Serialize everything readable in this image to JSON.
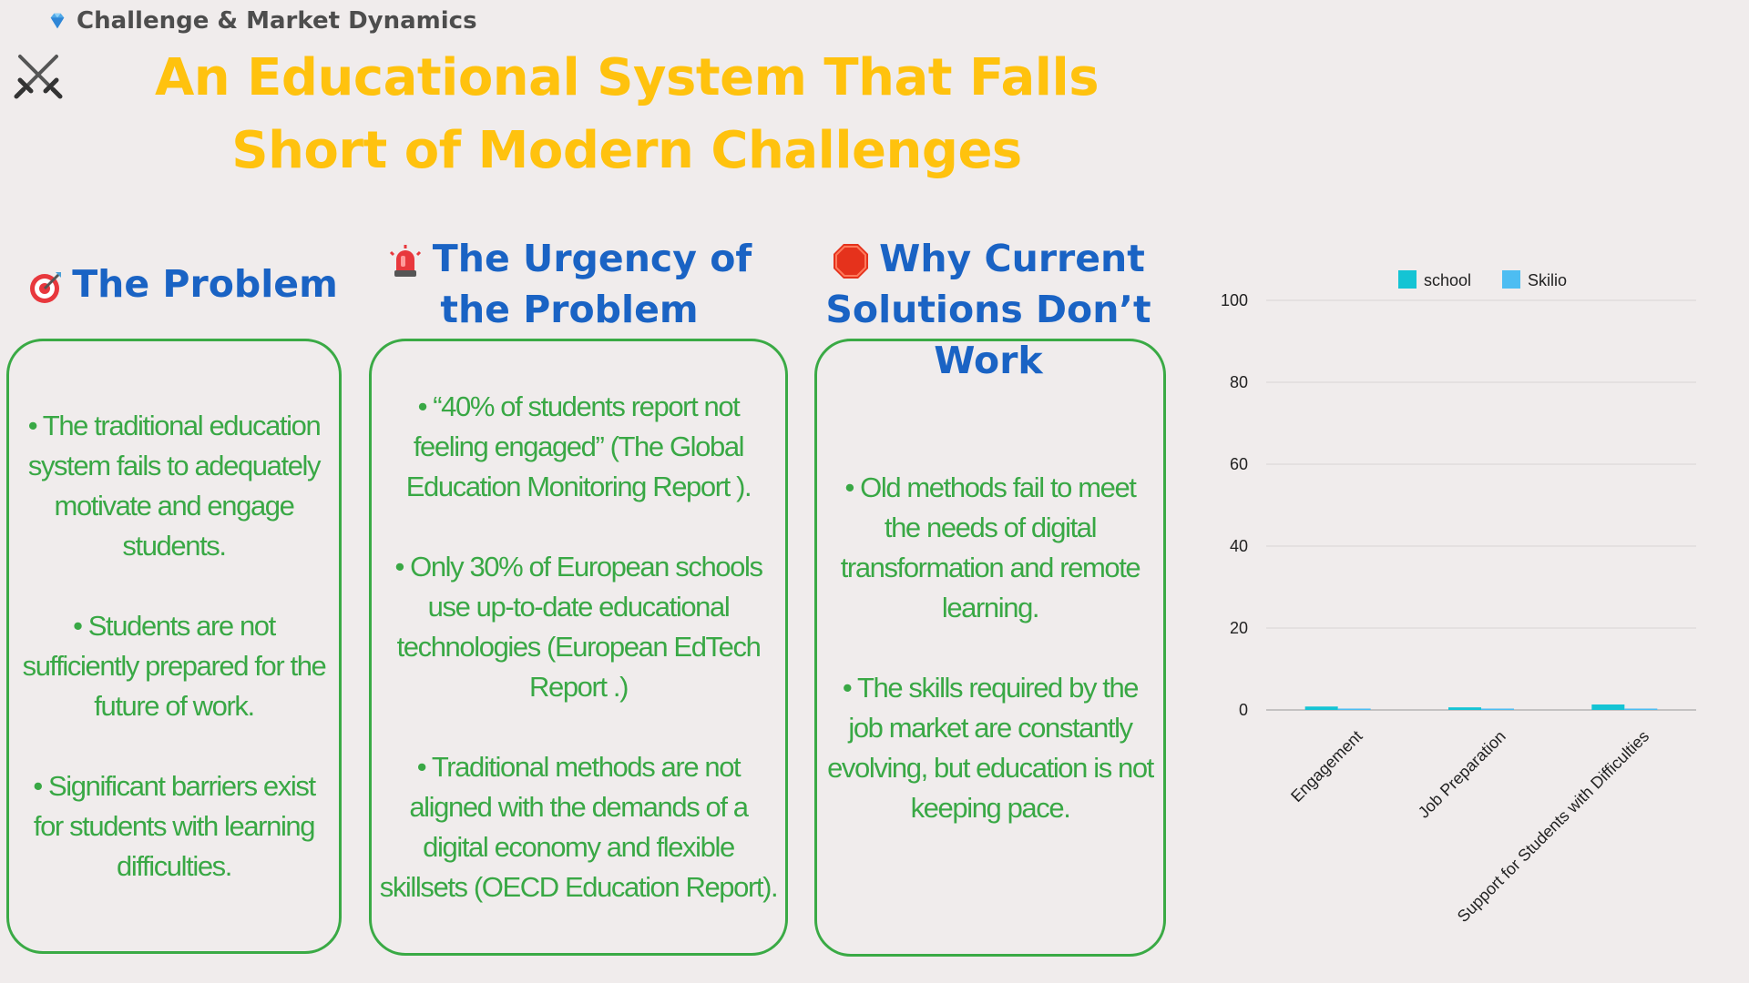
{
  "header": {
    "kicker": "Challenge & Market Dynamics",
    "title": "An Educational System That Falls Short of Modern Challenges"
  },
  "columns": [
    {
      "heading": "The Problem",
      "icon": "target-icon",
      "bullets": [
        "• The traditional education system fails to adequately motivate and engage students.",
        "• Students are not sufficiently prepared for the future of work.",
        "• Significant barriers exist for students with learning difficulties."
      ]
    },
    {
      "heading": "The Urgency of the Problem",
      "icon": "siren-icon",
      "bullets": [
        "• “40% of students report not feeling engaged” (The Global Education Monitoring Report ).",
        "• Only 30% of European schools use up-to-date educational technologies  (European EdTech Report .)",
        "• Traditional methods are not aligned with the demands of a digital economy and flexible skillsets (OECD Education Report)."
      ]
    },
    {
      "heading": "Why Current Solutions Don’t Work",
      "icon": "stop-sign-icon",
      "bullets": [
        "• Old methods fail to meet the needs of digital transformation and remote learning.",
        "• The skills required by the job market are constantly evolving, but education is not keeping pace."
      ]
    }
  ],
  "colors": {
    "background": "#f0ecec",
    "title": "#ffc20e",
    "heading": "#1a63c4",
    "text_green": "#39a845",
    "border_green": "#3aaa45",
    "series_school": "#14c4d4",
    "series_skilio": "#4dbdf2"
  },
  "chart_data": {
    "type": "bar",
    "title": "",
    "xlabel": "",
    "ylabel": "",
    "categories": [
      "Engagement",
      "Job Preparation",
      "Support for Students with Difficulties"
    ],
    "series": [
      {
        "name": "school",
        "values": [
          0.5,
          0.3,
          1
        ]
      },
      {
        "name": "Skilio",
        "values": [
          0,
          0,
          0
        ]
      }
    ],
    "ylim": [
      0,
      100
    ],
    "yticks": [
      0,
      20,
      40,
      60,
      80,
      100
    ],
    "grid": true,
    "legend": "top"
  }
}
